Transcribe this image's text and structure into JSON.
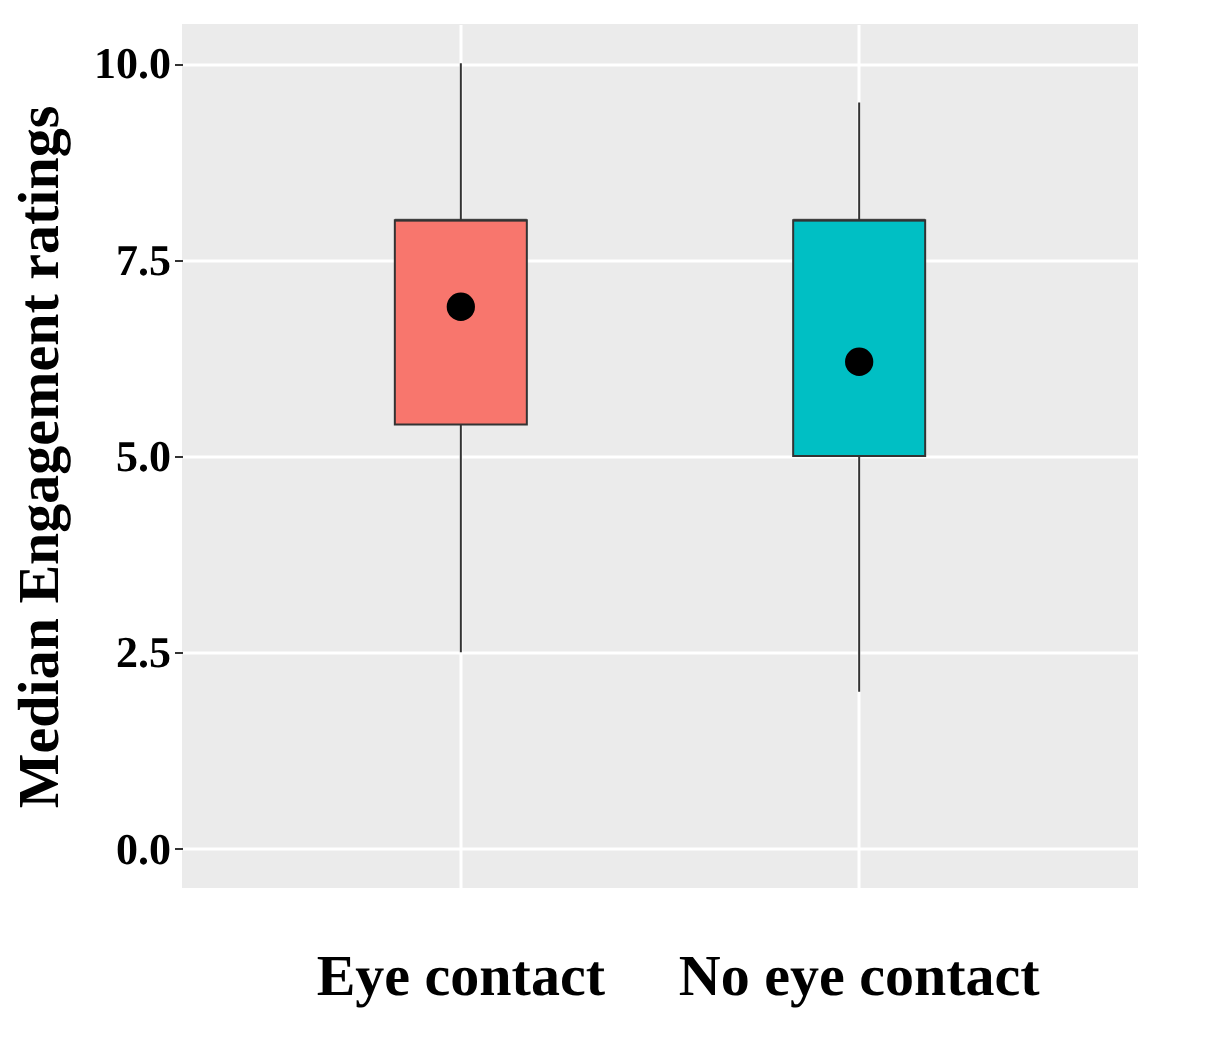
{
  "chart_data": {
    "type": "box",
    "ylabel": "Median Engagement ratings",
    "categories": [
      "Eye contact",
      "No eye contact"
    ],
    "colors": [
      "#f8766d",
      "#00bfc4"
    ],
    "boxes": [
      {
        "low": 2.5,
        "q1": 5.4,
        "median": 8.0,
        "q3": 8.0,
        "high": 10.0,
        "mean": 6.9
      },
      {
        "low": 2.0,
        "q1": 5.0,
        "median": 8.0,
        "q3": 8.0,
        "high": 9.5,
        "mean": 6.2
      }
    ],
    "ylim": [
      -0.5,
      10.5
    ],
    "yticks": [
      {
        "value": 0,
        "label": "0.0"
      },
      2.5,
      {
        "value": 5,
        "label": "5.0"
      },
      7.5,
      {
        "value": 10,
        "label": "10.0"
      }
    ],
    "grid": true
  }
}
